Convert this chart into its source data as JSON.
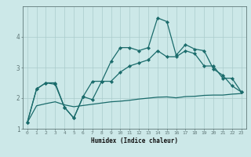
{
  "xlabel": "Humidex (Indice chaleur)",
  "ylabel": "",
  "background_color": "#cce8e8",
  "line_color": "#1a6b6b",
  "grid_color": "#aacccc",
  "x_values": [
    0,
    1,
    2,
    3,
    4,
    5,
    6,
    7,
    8,
    9,
    10,
    11,
    12,
    13,
    14,
    15,
    16,
    17,
    18,
    19,
    20,
    21,
    22,
    23
  ],
  "line1": [
    1.2,
    2.3,
    2.5,
    2.5,
    1.7,
    1.35,
    2.05,
    1.95,
    2.55,
    3.2,
    3.65,
    3.65,
    3.55,
    3.65,
    4.62,
    4.5,
    3.4,
    3.75,
    3.6,
    3.55,
    2.95,
    2.75,
    2.4,
    2.2
  ],
  "line2": [
    1.2,
    2.3,
    2.5,
    2.45,
    1.7,
    1.35,
    2.05,
    2.55,
    2.55,
    2.55,
    2.85,
    3.05,
    3.15,
    3.25,
    3.55,
    3.35,
    3.35,
    3.55,
    3.45,
    3.05,
    3.05,
    2.65,
    2.65,
    2.2
  ],
  "line3": [
    1.2,
    1.75,
    1.82,
    1.88,
    1.78,
    1.72,
    1.76,
    1.8,
    1.84,
    1.88,
    1.9,
    1.93,
    1.97,
    2.0,
    2.03,
    2.04,
    2.01,
    2.05,
    2.06,
    2.09,
    2.1,
    2.1,
    2.13,
    2.15
  ],
  "ylim": [
    1.0,
    5.0
  ],
  "xlim": [
    -0.5,
    23.5
  ],
  "yticks": [
    1,
    2,
    3,
    4
  ],
  "xticks": [
    0,
    1,
    2,
    3,
    4,
    5,
    6,
    7,
    8,
    9,
    10,
    11,
    12,
    13,
    14,
    15,
    16,
    17,
    18,
    19,
    20,
    21,
    22,
    23
  ]
}
